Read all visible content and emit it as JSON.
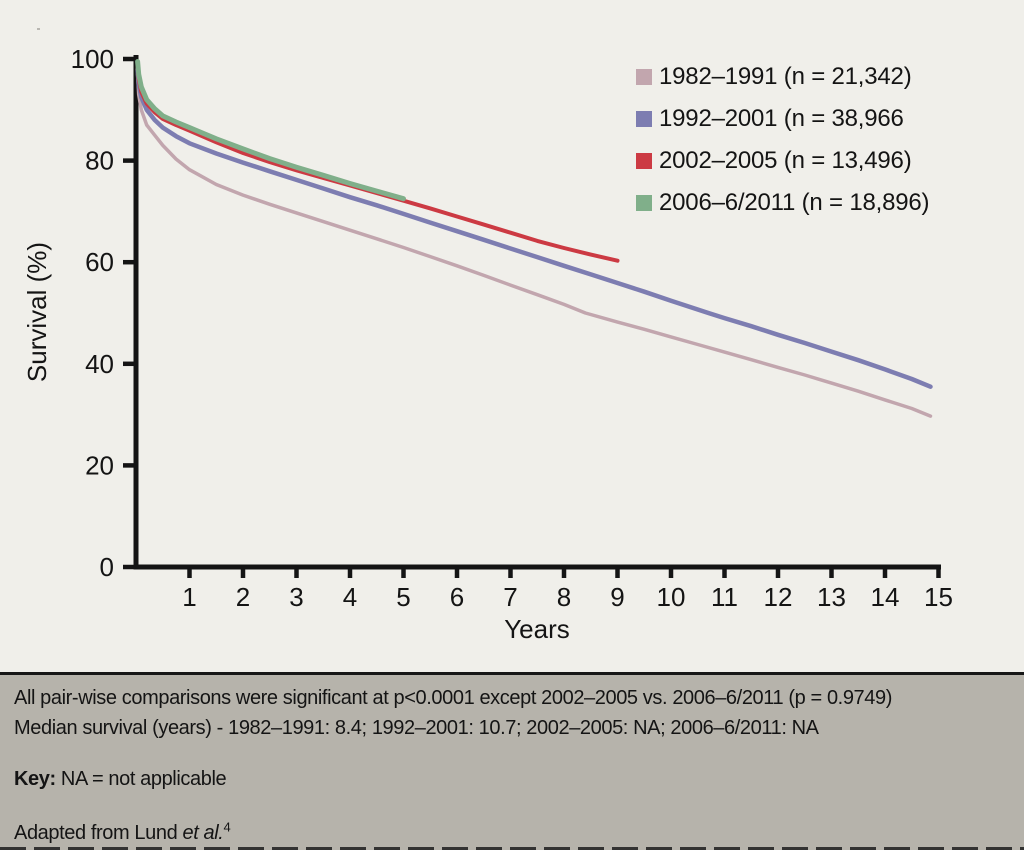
{
  "chart": {
    "y_axis_label": "Survival (%)",
    "x_axis_label": "Years",
    "y_ticks": [
      0,
      20,
      40,
      60,
      80,
      100
    ],
    "x_ticks": [
      1,
      2,
      3,
      4,
      5,
      6,
      7,
      8,
      9,
      10,
      11,
      12,
      13,
      14,
      15
    ]
  },
  "chart_data": {
    "type": "line",
    "title": "",
    "xlabel": "Years",
    "ylabel": "Survival (%)",
    "xlim": [
      0,
      15
    ],
    "ylim": [
      0,
      100
    ],
    "grid": false,
    "legend_position": "top-right",
    "median_survival_years": {
      "1982-1991": 8.4,
      "1992-2001": 10.7,
      "2002-2005": "NA",
      "2006-6/2011": "NA"
    },
    "series": [
      {
        "name": "1982–1991 (n = 21,342)",
        "color": "#c2a6ae",
        "width": 3.5,
        "x": [
          0.03,
          0.05,
          0.1,
          0.2,
          0.35,
          0.5,
          0.75,
          1,
          1.5,
          2,
          2.5,
          3,
          3.5,
          4,
          4.5,
          5,
          5.5,
          6,
          6.5,
          7,
          7.5,
          8,
          8.4,
          9,
          9.5,
          10,
          10.5,
          11,
          11.5,
          12,
          12.5,
          13,
          13.5,
          14,
          14.5,
          14.85
        ],
        "y": [
          97,
          93,
          90,
          87,
          85,
          83,
          80.3,
          78.2,
          75.3,
          73.2,
          71.4,
          69.7,
          68,
          66.3,
          64.6,
          62.9,
          61.1,
          59.3,
          57.4,
          55.5,
          53.6,
          51.7,
          50,
          48.2,
          46.8,
          45.3,
          43.8,
          42.3,
          40.8,
          39.3,
          37.8,
          36.2,
          34.6,
          32.9,
          31.2,
          29.7
        ]
      },
      {
        "name": "1992–2001 (n = 38,966",
        "color": "#7d7db1",
        "width": 4.5,
        "x": [
          0.03,
          0.05,
          0.1,
          0.2,
          0.35,
          0.5,
          0.75,
          1,
          1.5,
          2,
          2.5,
          3,
          3.5,
          4,
          4.5,
          5,
          5.5,
          6,
          6.5,
          7,
          7.5,
          8,
          8.5,
          9,
          9.5,
          10,
          10.7,
          11,
          11.5,
          12,
          12.5,
          13,
          13.5,
          14,
          14.5,
          14.85
        ],
        "y": [
          98,
          95,
          92.5,
          90,
          88,
          86.5,
          84.8,
          83.4,
          81.4,
          79.6,
          77.9,
          76.2,
          74.5,
          72.8,
          71.2,
          69.5,
          67.8,
          66.1,
          64.4,
          62.7,
          61,
          59.3,
          57.6,
          55.9,
          54.2,
          52.4,
          50,
          49,
          47.4,
          45.7,
          44.1,
          42.4,
          40.7,
          38.9,
          37,
          35.5
        ]
      },
      {
        "name": "2002–2005 (n = 13,496)",
        "color": "#cc3a43",
        "width": 4,
        "x": [
          0.03,
          0.05,
          0.1,
          0.2,
          0.35,
          0.5,
          0.75,
          1,
          1.5,
          2,
          2.5,
          3,
          3.5,
          4,
          4.5,
          5,
          5.5,
          6,
          6.5,
          7,
          7.5,
          8,
          8.5,
          9
        ],
        "y": [
          98.5,
          96,
          93.5,
          91.2,
          89.5,
          88.2,
          87,
          85.9,
          83.6,
          81.5,
          79.7,
          78.1,
          76.6,
          75.1,
          73.6,
          72.1,
          70.6,
          69,
          67.4,
          65.8,
          64.2,
          62.8,
          61.5,
          60.3
        ]
      },
      {
        "name": "2006–6/2011 (n = 18,896)",
        "color": "#80af8a",
        "width": 5,
        "x": [
          0.03,
          0.05,
          0.1,
          0.2,
          0.35,
          0.5,
          0.75,
          1,
          1.5,
          2,
          2.5,
          3,
          3.5,
          4,
          4.5,
          5
        ],
        "y": [
          99.5,
          97,
          94.5,
          92,
          90.2,
          88.8,
          87.6,
          86.5,
          84.3,
          82.3,
          80.4,
          78.7,
          77.1,
          75.5,
          74,
          72.5
        ]
      }
    ]
  },
  "footnotes": {
    "line1": "All pair-wise comparisons were significant at p<0.0001 except 2002–2005 vs. 2006–6/2011 (p = 0.9749)",
    "line2": "Median survival (years) - 1982–1991: 8.4; 1992–2001: 10.7; 2002–2005: NA; 2006–6/2011: NA",
    "key_label": "Key:",
    "key_text": " NA = not applicable",
    "source_prefix": "Adapted from Lund ",
    "source_italic": "et al.",
    "source_superscript": "4"
  }
}
